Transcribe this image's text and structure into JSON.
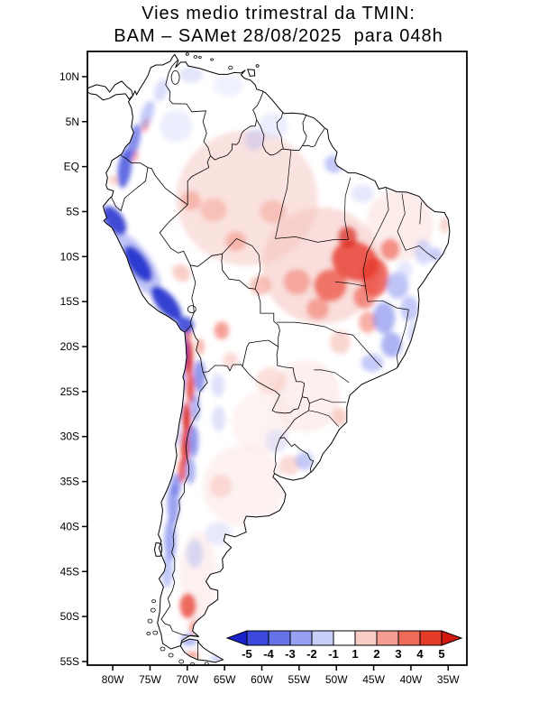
{
  "title": {
    "line1": "Vies medio trimestral da TMIN:",
    "line2": "BAM – SAMet 28/08/2025  para 048h"
  },
  "axes": {
    "lat_ticks": [
      {
        "label": "10N",
        "value": 10
      },
      {
        "label": "5N",
        "value": 5
      },
      {
        "label": "EQ",
        "value": 0
      },
      {
        "label": "5S",
        "value": -5
      },
      {
        "label": "10S",
        "value": -10
      },
      {
        "label": "15S",
        "value": -15
      },
      {
        "label": "20S",
        "value": -20
      },
      {
        "label": "25S",
        "value": -25
      },
      {
        "label": "30S",
        "value": -30
      },
      {
        "label": "35S",
        "value": -35
      },
      {
        "label": "40S",
        "value": -40
      },
      {
        "label": "45S",
        "value": -45
      },
      {
        "label": "50S",
        "value": -50
      },
      {
        "label": "55S",
        "value": -55
      }
    ],
    "lon_ticks": [
      {
        "label": "80W",
        "value": -80
      },
      {
        "label": "75W",
        "value": -75
      },
      {
        "label": "70W",
        "value": -70
      },
      {
        "label": "65W",
        "value": -65
      },
      {
        "label": "60W",
        "value": -60
      },
      {
        "label": "55W",
        "value": -55
      },
      {
        "label": "50W",
        "value": -50
      },
      {
        "label": "45W",
        "value": -45
      },
      {
        "label": "40W",
        "value": -40
      },
      {
        "label": "35W",
        "value": -35
      }
    ]
  },
  "colorbar": {
    "tick_labels": [
      "-5",
      "-4",
      "-3",
      "-2",
      "-1",
      "1",
      "2",
      "3",
      "4",
      "5"
    ],
    "arrow_left_color": "#1822c8",
    "arrow_right_color": "#d31a10",
    "segment_colors": [
      "#3a48dc",
      "#6673e8",
      "#97a1f1",
      "#c8cef8",
      "#ffffff",
      "#f8cdc6",
      "#f49d90",
      "#ee6b5a",
      "#e43a28"
    ]
  },
  "map": {
    "land_color": "#ffffff",
    "outline_color": "#000000",
    "field_blobs": [
      [
        -62,
        -3.5,
        9.5,
        7.5,
        0,
        "#f6cfca",
        0.6
      ],
      [
        -52,
        -11,
        8,
        6.5,
        0,
        "#f3beb7",
        0.5
      ],
      [
        -41.5,
        -6.5,
        4.5,
        4,
        0,
        "#f8d8d3",
        0.45
      ],
      [
        -54,
        -25.5,
        4.5,
        4,
        0,
        "#f8d8d3",
        0.4
      ],
      [
        -62.5,
        -35.5,
        5.5,
        4.5,
        0,
        "#f9dedb",
        0.4
      ],
      [
        -60,
        -28.5,
        4,
        3.5,
        0,
        "#f9dedb",
        0.35
      ],
      [
        -68.5,
        -45.5,
        2.5,
        5,
        0,
        "#f8d8d3",
        0.35
      ],
      [
        -47.5,
        -10.5,
        3.2,
        2.2,
        20,
        "#e8392b",
        0.8
      ],
      [
        -50.8,
        -13.2,
        2.2,
        1.8,
        0,
        "#ee5242",
        0.75
      ],
      [
        -44.8,
        -12.3,
        1.8,
        2.2,
        0,
        "#e8392b",
        0.75
      ],
      [
        -48.5,
        -7.8,
        1.3,
        1.2,
        0,
        "#d8231a",
        0.7
      ],
      [
        -46.2,
        -14.5,
        1.5,
        1.3,
        0,
        "#ee5242",
        0.6
      ],
      [
        -42.8,
        -9.2,
        1.3,
        1.2,
        0,
        "#ee5242",
        0.6
      ],
      [
        -52.5,
        -15.8,
        1.5,
        1.2,
        0,
        "#f2705f",
        0.55
      ],
      [
        -55.3,
        -12.8,
        1.8,
        1.4,
        0,
        "#f2705f",
        0.5
      ],
      [
        -60.2,
        -13.2,
        1.4,
        1.1,
        0,
        "#f28a7a",
        0.5
      ],
      [
        -63.5,
        -8.3,
        1.4,
        1.1,
        0,
        "#f28a7a",
        0.5
      ],
      [
        -58.5,
        -5,
        1.8,
        1.3,
        0,
        "#f4a093",
        0.5
      ],
      [
        -66.5,
        -4.8,
        1.8,
        1.3,
        0,
        "#f4a093",
        0.5
      ],
      [
        -69.5,
        -3.8,
        1.3,
        1.1,
        0,
        "#f28a7a",
        0.5
      ],
      [
        -49.5,
        -19.5,
        1.4,
        1.3,
        0,
        "#f6aea4",
        0.5
      ],
      [
        -45.8,
        -17.3,
        1.2,
        1.2,
        0,
        "#f2705f",
        0.55
      ],
      [
        -69.8,
        -21.3,
        0.55,
        2,
        0,
        "#d8231a",
        0.9
      ],
      [
        -69.6,
        -24.6,
        0.5,
        1.8,
        0,
        "#e8392b",
        0.85
      ],
      [
        -70.1,
        -28,
        0.55,
        1.8,
        0,
        "#d8231a",
        0.9
      ],
      [
        -70.3,
        -31.2,
        0.55,
        2,
        0,
        "#d8231a",
        0.85
      ],
      [
        -70.7,
        -33.8,
        0.5,
        1.3,
        0,
        "#e8392b",
        0.8
      ],
      [
        -69.9,
        -18.7,
        0.5,
        1,
        0,
        "#ee5242",
        0.7
      ],
      [
        -69.9,
        -48.8,
        1.1,
        1.4,
        0,
        "#e8392b",
        0.75
      ],
      [
        -68.9,
        -51.2,
        0.9,
        0.8,
        0,
        "#f2705f",
        0.6
      ],
      [
        -69.3,
        -54.3,
        0.9,
        0.45,
        0,
        "#ee5242",
        0.5
      ],
      [
        -65.4,
        -18.2,
        1,
        1,
        0,
        "#ee5242",
        0.55
      ],
      [
        -64.2,
        -21.5,
        1,
        0.9,
        0,
        "#f6aea4",
        0.45
      ],
      [
        -68.3,
        -20,
        0.6,
        0.9,
        0,
        "#f2705f",
        0.5
      ],
      [
        -75.6,
        4.6,
        0.45,
        0.8,
        15,
        "#ee5242",
        0.55
      ],
      [
        -77,
        1.2,
        0.4,
        0.7,
        10,
        "#ee5242",
        0.5
      ],
      [
        -79.9,
        -1.5,
        0.6,
        0.6,
        0,
        "#f4a093",
        0.45
      ],
      [
        -35.5,
        -6.5,
        0.6,
        0.9,
        0,
        "#f4a093",
        0.45
      ],
      [
        -70.8,
        -11.8,
        1.3,
        0.9,
        40,
        "#f4a093",
        0.5
      ],
      [
        -56.3,
        -33.2,
        1.4,
        1.1,
        0,
        "#f6aea4",
        0.45
      ],
      [
        -49.6,
        -27.8,
        1,
        1,
        0,
        "#f4a093",
        0.5
      ],
      [
        -58.8,
        -23.8,
        2,
        1.5,
        0,
        "#f6aea4",
        0.4
      ],
      [
        -65.5,
        -35.5,
        1.5,
        1.3,
        0,
        "#f6aea4",
        0.4
      ],
      [
        -76.8,
        -10.8,
        5,
        1.6,
        55,
        "#8a93f0",
        0.55
      ],
      [
        -79.8,
        -6,
        2.2,
        1,
        55,
        "#1f2ccc",
        0.85
      ],
      [
        -76.6,
        -10.8,
        2.8,
        1,
        55,
        "#1f2ccc",
        0.9
      ],
      [
        -72.8,
        -15.2,
        2.8,
        1,
        50,
        "#1f2ccc",
        0.9
      ],
      [
        -70.3,
        -17.6,
        1.2,
        0.9,
        30,
        "#2f3cd8",
        0.85
      ],
      [
        -70.6,
        -20.5,
        0.6,
        1.8,
        0,
        "#2f3cd8",
        0.8
      ],
      [
        -70.9,
        -23.5,
        0.55,
        1.8,
        0,
        "#4753e0",
        0.7
      ],
      [
        -71.2,
        -26.5,
        0.5,
        1.6,
        0,
        "#6a75ea",
        0.6
      ],
      [
        -71.5,
        -29.5,
        0.5,
        1.6,
        0,
        "#8a93f0",
        0.5
      ],
      [
        -68.4,
        -23.3,
        0.8,
        1.8,
        0,
        "#4753e0",
        0.6
      ],
      [
        -68.9,
        -26.8,
        0.6,
        1.6,
        0,
        "#6a75ea",
        0.55
      ],
      [
        -69.2,
        -30.5,
        0.7,
        1.8,
        0,
        "#4753e0",
        0.6
      ],
      [
        -69.6,
        -33.8,
        0.7,
        1.5,
        0,
        "#6a75ea",
        0.55
      ],
      [
        -71.5,
        -35.3,
        0.7,
        1.2,
        0,
        "#4753e0",
        0.55
      ],
      [
        -71.9,
        -37.5,
        0.8,
        2.2,
        0,
        "#5a66e6",
        0.6
      ],
      [
        -72.3,
        -41.5,
        0.8,
        2.4,
        0,
        "#5a66e6",
        0.55
      ],
      [
        -72.7,
        -45,
        0.8,
        1.8,
        0,
        "#8a93f0",
        0.5
      ],
      [
        -78.4,
        -0.2,
        0.9,
        2.2,
        8,
        "#2f3cd8",
        0.75
      ],
      [
        -77.2,
        2.8,
        0.8,
        2,
        15,
        "#4753e0",
        0.65
      ],
      [
        -75.4,
        5.8,
        0.8,
        1.6,
        18,
        "#8a93f0",
        0.5
      ],
      [
        -73.5,
        8.5,
        0.9,
        1.3,
        20,
        "#aeb5f5",
        0.45
      ],
      [
        -69.5,
        10.2,
        1.6,
        0.9,
        0,
        "#c5cbf8",
        0.5
      ],
      [
        -64.5,
        9,
        2,
        1.2,
        0,
        "#dde1fc",
        0.45
      ],
      [
        -71.5,
        4.5,
        2.2,
        1.8,
        0,
        "#d4d9fb",
        0.45
      ],
      [
        -58.5,
        4.5,
        2,
        1.5,
        0,
        "#d4d9fb",
        0.45
      ],
      [
        -61,
        3,
        1.3,
        1.2,
        0,
        "#aeb5f5",
        0.4
      ],
      [
        -50.3,
        0.3,
        1.3,
        1,
        0,
        "#8a93f0",
        0.5
      ],
      [
        -46.5,
        -3,
        1.5,
        1,
        0,
        "#c5cbf8",
        0.45
      ],
      [
        -41.8,
        -13.2,
        1.5,
        1.5,
        0,
        "#8a93f0",
        0.55
      ],
      [
        -43.6,
        -16.8,
        1.5,
        1.8,
        0,
        "#6a75ea",
        0.55
      ],
      [
        -40.2,
        -15.8,
        1.2,
        1.4,
        0,
        "#8a93f0",
        0.5
      ],
      [
        -42.6,
        -19.8,
        1.4,
        1.4,
        0,
        "#6a75ea",
        0.55
      ],
      [
        -45.2,
        -21.8,
        1.5,
        1,
        0,
        "#8a93f0",
        0.5
      ],
      [
        -39.5,
        -18.5,
        1,
        1.2,
        0,
        "#aeb5f5",
        0.45
      ],
      [
        -38.3,
        -9.5,
        1.2,
        1.4,
        0,
        "#aeb5f5",
        0.5
      ],
      [
        -36.6,
        -9.8,
        0.8,
        0.8,
        0,
        "#8a93f0",
        0.45
      ],
      [
        -40.8,
        -11.5,
        1,
        1,
        0,
        "#c5cbf8",
        0.45
      ],
      [
        -54.3,
        -32.7,
        1.2,
        1,
        0,
        "#8a93f0",
        0.5
      ],
      [
        -58,
        -30.5,
        1.5,
        1.3,
        0,
        "#c5cbf8",
        0.4
      ],
      [
        -65.8,
        -40.8,
        1.8,
        1.3,
        0,
        "#c5cbf8",
        0.4
      ],
      [
        -69,
        -43,
        1.1,
        1.6,
        0,
        "#aeb5f5",
        0.45
      ],
      [
        -69.8,
        -52.6,
        1.1,
        0.7,
        0,
        "#6a75ea",
        0.5
      ],
      [
        -66,
        -54.7,
        0.9,
        0.4,
        0,
        "#8a93f0",
        0.45
      ],
      [
        -65.8,
        -28,
        0.9,
        1.4,
        0,
        "#aeb5f5",
        0.4
      ],
      [
        -65.9,
        -24.3,
        0.9,
        1.3,
        0,
        "#aeb5f5",
        0.4
      ]
    ]
  }
}
